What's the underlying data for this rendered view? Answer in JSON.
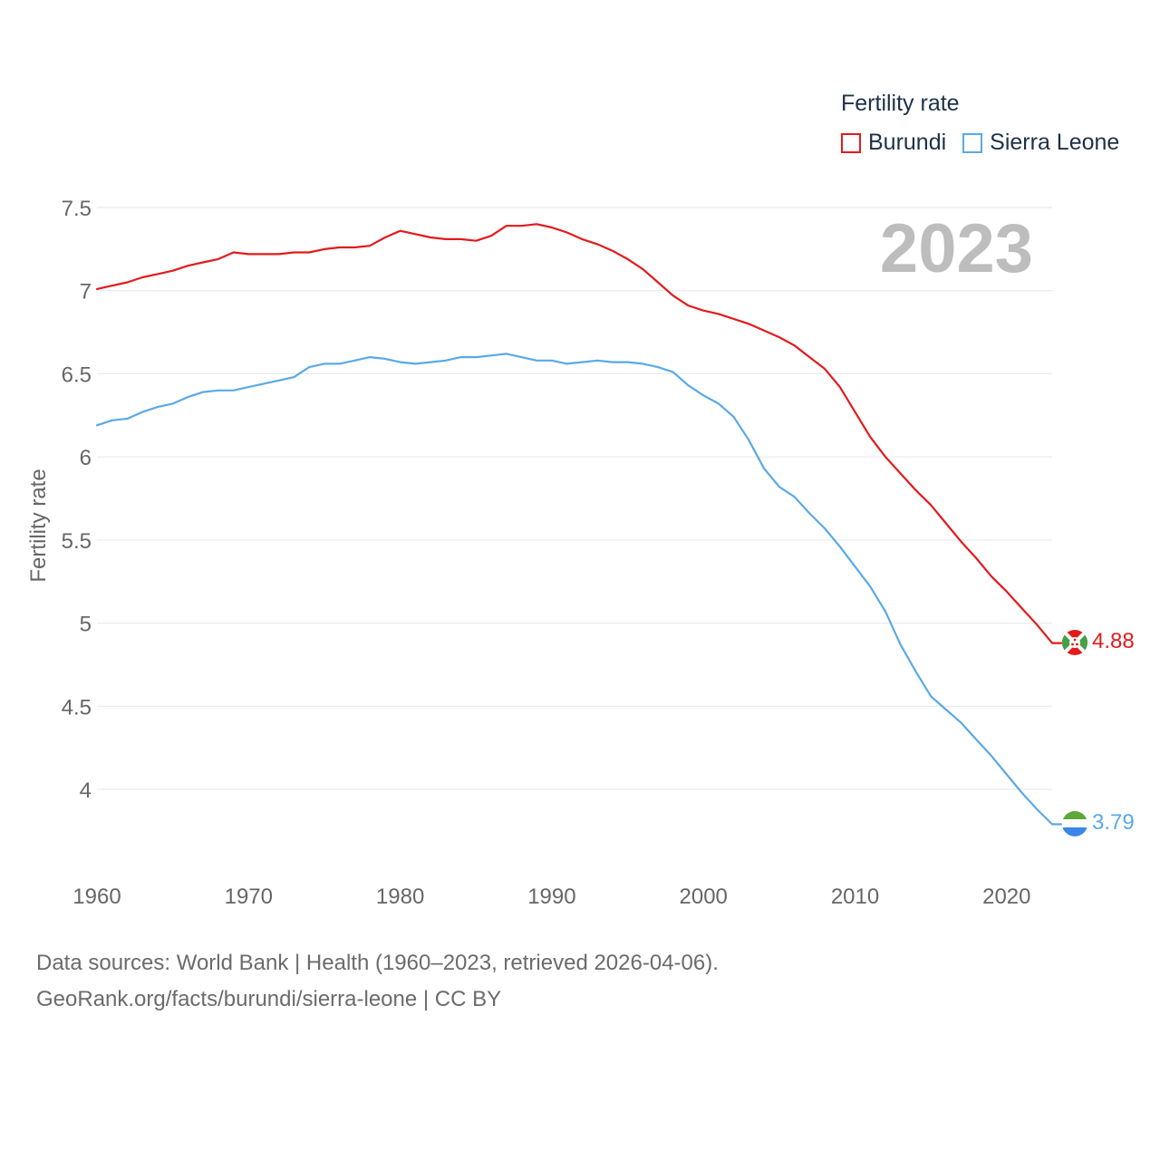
{
  "chart_data": {
    "type": "line",
    "title": "Fertility rate",
    "xlabel": "",
    "ylabel": "Fertility rate",
    "year_label": "2023",
    "xlim": [
      1960,
      2023
    ],
    "ylim": [
      3.6,
      7.6
    ],
    "y_ticks": [
      4,
      4.5,
      5,
      5.5,
      6,
      6.5,
      7,
      7.5
    ],
    "y_tick_labels": [
      "4",
      "4.5",
      "5",
      "5.5",
      "6",
      "6.5",
      "7",
      "7.5"
    ],
    "x_ticks": [
      1960,
      1970,
      1980,
      1990,
      2000,
      2010,
      2020
    ],
    "x_tick_labels": [
      "1960",
      "1970",
      "1980",
      "1990",
      "2000",
      "2010",
      "2020"
    ],
    "grid": true,
    "legend_position": "top-right",
    "x": [
      1960,
      1961,
      1962,
      1963,
      1964,
      1965,
      1966,
      1967,
      1968,
      1969,
      1970,
      1971,
      1972,
      1973,
      1974,
      1975,
      1976,
      1977,
      1978,
      1979,
      1980,
      1981,
      1982,
      1983,
      1984,
      1985,
      1986,
      1987,
      1988,
      1989,
      1990,
      1991,
      1992,
      1993,
      1994,
      1995,
      1996,
      1997,
      1998,
      1999,
      2000,
      2001,
      2002,
      2003,
      2004,
      2005,
      2006,
      2007,
      2008,
      2009,
      2010,
      2011,
      2012,
      2013,
      2014,
      2015,
      2016,
      2017,
      2018,
      2019,
      2020,
      2021,
      2022,
      2023
    ],
    "series": [
      {
        "name": "Burundi",
        "color": "#e31a1c",
        "end_label": "4.88",
        "values": [
          7.01,
          7.03,
          7.05,
          7.08,
          7.1,
          7.12,
          7.15,
          7.17,
          7.19,
          7.23,
          7.22,
          7.22,
          7.22,
          7.23,
          7.23,
          7.25,
          7.26,
          7.26,
          7.27,
          7.32,
          7.36,
          7.34,
          7.32,
          7.31,
          7.31,
          7.3,
          7.33,
          7.39,
          7.39,
          7.4,
          7.38,
          7.35,
          7.31,
          7.28,
          7.24,
          7.19,
          7.13,
          7.05,
          6.97,
          6.91,
          6.88,
          6.86,
          6.83,
          6.8,
          6.76,
          6.72,
          6.67,
          6.6,
          6.53,
          6.42,
          6.27,
          6.12,
          6.0,
          5.9,
          5.8,
          5.71,
          5.6,
          5.49,
          5.39,
          5.28,
          5.19,
          5.09,
          4.99,
          4.88
        ]
      },
      {
        "name": "Sierra Leone",
        "color": "#5aa9e6",
        "end_label": "3.79",
        "values": [
          6.19,
          6.22,
          6.23,
          6.27,
          6.3,
          6.32,
          6.36,
          6.39,
          6.4,
          6.4,
          6.42,
          6.44,
          6.46,
          6.48,
          6.54,
          6.56,
          6.56,
          6.58,
          6.6,
          6.59,
          6.57,
          6.56,
          6.57,
          6.58,
          6.6,
          6.6,
          6.61,
          6.62,
          6.6,
          6.58,
          6.58,
          6.56,
          6.57,
          6.58,
          6.57,
          6.57,
          6.56,
          6.54,
          6.51,
          6.43,
          6.37,
          6.32,
          6.24,
          6.1,
          5.93,
          5.82,
          5.76,
          5.66,
          5.57,
          5.46,
          5.34,
          5.22,
          5.07,
          4.87,
          4.71,
          4.56,
          4.48,
          4.4,
          4.3,
          4.2,
          4.09,
          3.98,
          3.88,
          3.79
        ]
      }
    ],
    "source_line1": "Data sources: World Bank | Health (1960–2023, retrieved 2026-04-06).",
    "source_line2": "GeoRank.org/facts/burundi/sierra-leone | CC BY"
  }
}
